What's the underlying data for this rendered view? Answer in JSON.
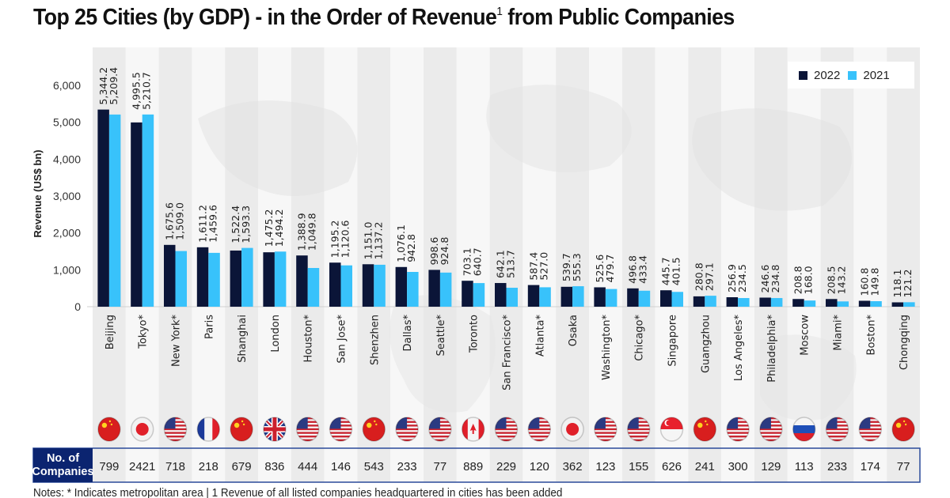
{
  "title": {
    "main": "Top 25 Cities (by GDP) - in the Order of Revenue",
    "superscript": "1",
    "tail": " from Public Companies"
  },
  "notes": "Notes: * Indicates metropolitan area | 1 Revenue of all listed companies headquartered in cities has been added",
  "colors": {
    "series_2022": "#0b1538",
    "series_2021": "#38c2fb",
    "companies_header_bg": "#0b2470",
    "band_light": "#f7f7f7",
    "band_dark": "#ebebeb"
  },
  "companies_label": [
    "No. of",
    "Companies"
  ],
  "chart_data": {
    "type": "bar",
    "title": "Top 25 Cities (by GDP) - in the Order of Revenue from Public Companies",
    "xlabel": "",
    "ylabel": "Revenue (US$ bn)",
    "ylim": [
      0,
      6000
    ],
    "yticks": [
      0,
      1000,
      2000,
      3000,
      4000,
      5000,
      6000
    ],
    "ytick_labels": [
      "0",
      "1,000",
      "2,000",
      "3,000",
      "4,000",
      "5,000",
      "6,000"
    ],
    "grid": false,
    "legend_position": "top-right",
    "categories": [
      "Beijing",
      "Tokyo*",
      "New York*",
      "Paris",
      "Shanghai",
      "London",
      "Houston*",
      "San Jose*",
      "Shenzhen",
      "Dallas*",
      "Seattle*",
      "Toronto",
      "San Francisco*",
      "Atlanta*",
      "Osaka",
      "Washington*",
      "Chicago*",
      "Singapore",
      "Guangzhou",
      "Los Angeles*",
      "Philadelphia*",
      "Moscow",
      "Miami*",
      "Boston*",
      "Chongqing"
    ],
    "series": [
      {
        "name": "2022",
        "values": [
          5344.2,
          4995.5,
          1675.6,
          1611.2,
          1522.4,
          1475.2,
          1388.9,
          1195.2,
          1151.0,
          1076.1,
          998.6,
          703.1,
          642.1,
          587.4,
          539.7,
          525.6,
          496.8,
          445.7,
          280.8,
          256.9,
          246.6,
          208.8,
          208.5,
          160.8,
          118.1
        ],
        "labels": [
          "5,344.2",
          "4,995.5",
          "1,675.6",
          "1,611.2",
          "1,522.4",
          "1,475.2",
          "1,388.9",
          "1,195.2",
          "1,151.0",
          "1,076.1",
          "998.6",
          "703.1",
          "642.1",
          "587.4",
          "539.7",
          "525.6",
          "496.8",
          "445.7",
          "280.8",
          "256.9",
          "246.6",
          "208.8",
          "208.5",
          "160.8",
          "118.1"
        ]
      },
      {
        "name": "2021",
        "values": [
          5209.4,
          5210.7,
          1509.0,
          1459.6,
          1593.3,
          1494.2,
          1049.8,
          1120.6,
          1137.2,
          942.8,
          924.8,
          640.7,
          513.7,
          527.0,
          555.3,
          479.7,
          433.4,
          401.5,
          297.1,
          234.5,
          234.8,
          168.0,
          143.2,
          149.8,
          121.2
        ],
        "labels": [
          "5,209.4",
          "5,210.7",
          "1,509.0",
          "1,459.6",
          "1,593.3",
          "1,494.2",
          "1,049.8",
          "1,120.6",
          "1,137.2",
          "942.8",
          "924.8",
          "640.7",
          "513.7",
          "527.0",
          "555.3",
          "479.7",
          "433.4",
          "401.5",
          "297.1",
          "234.5",
          "234.8",
          "168.0",
          "143.2",
          "149.8",
          "121.2"
        ]
      }
    ],
    "flags": [
      "china",
      "japan",
      "usa",
      "france",
      "china",
      "uk",
      "usa",
      "usa",
      "china",
      "usa",
      "usa",
      "canada",
      "usa",
      "usa",
      "japan",
      "usa",
      "usa",
      "singapore",
      "china",
      "usa",
      "usa",
      "russia",
      "usa",
      "usa",
      "china"
    ],
    "companies": [
      "799",
      "2421",
      "718",
      "218",
      "679",
      "836",
      "444",
      "146",
      "543",
      "233",
      "77",
      "889",
      "229",
      "120",
      "362",
      "123",
      "155",
      "626",
      "241",
      "300",
      "129",
      "113",
      "233",
      "174",
      "77"
    ]
  }
}
